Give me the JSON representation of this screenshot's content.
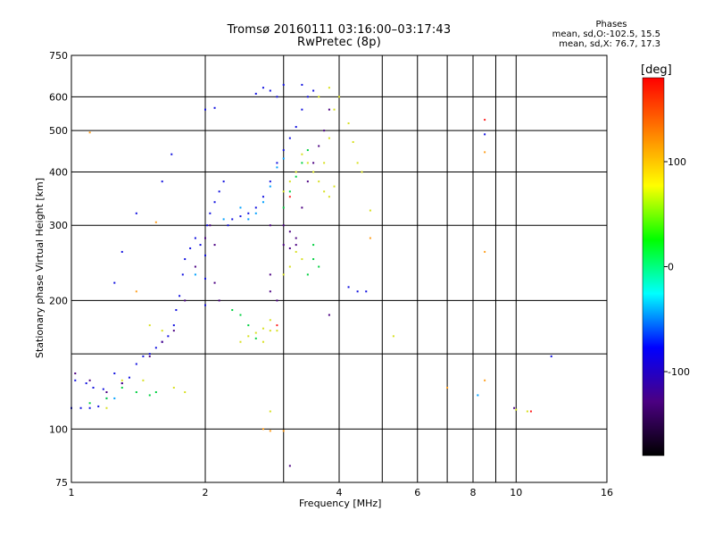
{
  "header": {
    "title_line1": "Tromsø 20160111 03:16:00–03:17:43",
    "title_line2": "RwPretec (8p)"
  },
  "phases": {
    "title": "Phases",
    "o_line": "mean, sd,O:-102.5, 15.5",
    "x_line": "mean, sd,X:  76.7, 17.3"
  },
  "chart_data": {
    "type": "scatter",
    "title": "Tromsø 20160111 03:16:00–03:17:43",
    "subtitle": "RwPretec (8p)",
    "xlabel": "Frequency [MHz]",
    "ylabel": "Stationary phase Virtual Height [km]",
    "x_scale": "log",
    "y_scale": "log",
    "xlim": [
      1,
      16
    ],
    "ylim": [
      75,
      750
    ],
    "x_ticks": [
      1,
      2,
      4,
      6,
      8,
      10,
      16
    ],
    "x_ticks_minor": [
      3,
      5,
      7,
      9
    ],
    "y_ticks": [
      75,
      100,
      200,
      300,
      400,
      500,
      600,
      750
    ],
    "y_ticks_minor": [
      150
    ],
    "grid": true,
    "colorbar": {
      "label": "[deg]",
      "range": [
        -180,
        180
      ],
      "ticks": [
        -100,
        0,
        100
      ],
      "stops": [
        "#000000",
        "#4b0082",
        "#0000ff",
        "#00ffff",
        "#00ff00",
        "#ffff00",
        "#ff7f00",
        "#ff0000"
      ]
    },
    "series": [
      {
        "color": "#1010e0",
        "phase": -100,
        "points": [
          [
            1.0,
            112
          ],
          [
            1.05,
            112
          ],
          [
            1.1,
            112
          ],
          [
            1.15,
            113
          ],
          [
            1.2,
            118
          ],
          [
            1.02,
            130
          ],
          [
            1.08,
            128
          ],
          [
            1.12,
            125
          ],
          [
            1.18,
            124
          ],
          [
            1.25,
            135
          ],
          [
            1.3,
            128
          ],
          [
            1.35,
            132
          ],
          [
            1.4,
            142
          ],
          [
            1.45,
            148
          ],
          [
            1.5,
            150
          ],
          [
            1.55,
            155
          ],
          [
            1.6,
            160
          ],
          [
            1.65,
            165
          ],
          [
            1.7,
            175
          ],
          [
            1.72,
            190
          ],
          [
            1.75,
            205
          ],
          [
            1.78,
            230
          ],
          [
            1.8,
            250
          ],
          [
            1.85,
            265
          ],
          [
            1.9,
            280
          ],
          [
            1.95,
            270
          ],
          [
            2.0,
            255
          ],
          [
            2.0,
            225
          ],
          [
            2.0,
            195
          ],
          [
            2.02,
            300
          ],
          [
            2.05,
            320
          ],
          [
            2.1,
            340
          ],
          [
            2.15,
            360
          ],
          [
            2.2,
            380
          ],
          [
            2.25,
            300
          ],
          [
            2.3,
            310
          ],
          [
            2.4,
            315
          ],
          [
            2.5,
            320
          ],
          [
            2.6,
            330
          ],
          [
            2.7,
            350
          ],
          [
            2.8,
            380
          ],
          [
            2.9,
            420
          ],
          [
            3.0,
            450
          ],
          [
            3.1,
            480
          ],
          [
            3.2,
            510
          ],
          [
            3.3,
            560
          ],
          [
            3.4,
            600
          ],
          [
            2.6,
            610
          ],
          [
            2.7,
            630
          ],
          [
            2.8,
            620
          ],
          [
            2.9,
            600
          ],
          [
            3.0,
            640
          ],
          [
            3.3,
            640
          ],
          [
            3.5,
            620
          ],
          [
            2.0,
            560
          ],
          [
            2.1,
            565
          ],
          [
            1.68,
            440
          ],
          [
            1.6,
            380
          ],
          [
            1.4,
            320
          ],
          [
            1.3,
            260
          ],
          [
            1.25,
            220
          ],
          [
            4.2,
            215
          ],
          [
            4.4,
            210
          ],
          [
            4.6,
            210
          ],
          [
            8.5,
            490
          ],
          [
            12.0,
            148
          ]
        ]
      },
      {
        "color": "#4b0082",
        "phase": -140,
        "points": [
          [
            1.02,
            135
          ],
          [
            1.1,
            130
          ],
          [
            1.2,
            122
          ],
          [
            1.3,
            128
          ],
          [
            1.5,
            148
          ],
          [
            1.6,
            160
          ],
          [
            1.7,
            170
          ],
          [
            1.8,
            200
          ],
          [
            1.9,
            240
          ],
          [
            2.0,
            280
          ],
          [
            2.05,
            300
          ],
          [
            2.1,
            270
          ],
          [
            2.1,
            220
          ],
          [
            2.15,
            200
          ],
          [
            2.8,
            300
          ],
          [
            3.0,
            300
          ],
          [
            3.1,
            290
          ],
          [
            3.2,
            280
          ],
          [
            3.3,
            330
          ],
          [
            3.4,
            380
          ],
          [
            3.5,
            420
          ],
          [
            3.6,
            460
          ],
          [
            3.7,
            500
          ],
          [
            3.8,
            560
          ],
          [
            3.0,
            270
          ],
          [
            3.1,
            265
          ],
          [
            3.2,
            270
          ],
          [
            2.8,
            230
          ],
          [
            2.8,
            210
          ],
          [
            2.9,
            200
          ],
          [
            3.1,
            82
          ],
          [
            3.8,
            185
          ],
          [
            9.9,
            112
          ]
        ]
      },
      {
        "color": "#00a0ff",
        "phase": -40,
        "points": [
          [
            2.5,
            310
          ],
          [
            2.6,
            320
          ],
          [
            2.7,
            340
          ],
          [
            2.8,
            370
          ],
          [
            2.9,
            410
          ],
          [
            3.0,
            430
          ],
          [
            2.4,
            330
          ],
          [
            2.2,
            310
          ],
          [
            1.9,
            230
          ],
          [
            1.25,
            118
          ],
          [
            8.2,
            120
          ]
        ]
      },
      {
        "color": "#00d040",
        "phase": 10,
        "points": [
          [
            1.1,
            115
          ],
          [
            1.2,
            118
          ],
          [
            1.3,
            125
          ],
          [
            1.4,
            122
          ],
          [
            1.5,
            120
          ],
          [
            1.55,
            122
          ],
          [
            2.3,
            190
          ],
          [
            2.4,
            185
          ],
          [
            2.5,
            175
          ],
          [
            3.0,
            330
          ],
          [
            3.1,
            360
          ],
          [
            3.2,
            390
          ],
          [
            3.3,
            420
          ],
          [
            3.4,
            450
          ],
          [
            3.5,
            250
          ],
          [
            3.4,
            230
          ],
          [
            3.6,
            240
          ],
          [
            3.5,
            270
          ],
          [
            2.6,
            163
          ]
        ]
      },
      {
        "color": "#d8e020",
        "phase": 80,
        "points": [
          [
            1.2,
            112
          ],
          [
            1.3,
            130
          ],
          [
            1.45,
            130
          ],
          [
            1.5,
            175
          ],
          [
            1.6,
            170
          ],
          [
            1.7,
            125
          ],
          [
            1.8,
            122
          ],
          [
            2.4,
            160
          ],
          [
            2.5,
            165
          ],
          [
            2.6,
            168
          ],
          [
            2.7,
            172
          ],
          [
            2.8,
            180
          ],
          [
            2.9,
            170
          ],
          [
            3.0,
            360
          ],
          [
            3.1,
            380
          ],
          [
            3.2,
            400
          ],
          [
            3.3,
            440
          ],
          [
            3.4,
            420
          ],
          [
            3.5,
            400
          ],
          [
            3.6,
            380
          ],
          [
            3.7,
            360
          ],
          [
            3.8,
            350
          ],
          [
            3.9,
            370
          ],
          [
            3.7,
            420
          ],
          [
            3.8,
            480
          ],
          [
            3.9,
            560
          ],
          [
            4.0,
            600
          ],
          [
            4.2,
            520
          ],
          [
            4.3,
            470
          ],
          [
            4.4,
            420
          ],
          [
            4.5,
            400
          ],
          [
            3.0,
            230
          ],
          [
            3.1,
            240
          ],
          [
            3.2,
            260
          ],
          [
            3.3,
            250
          ],
          [
            2.7,
            160
          ],
          [
            2.8,
            170
          ],
          [
            3.6,
            600
          ],
          [
            3.8,
            630
          ],
          [
            4.7,
            325
          ],
          [
            2.8,
            110
          ],
          [
            5.3,
            165
          ],
          [
            10.0,
            111
          ],
          [
            10.6,
            110
          ]
        ]
      },
      {
        "color": "#ffa020",
        "phase": 130,
        "points": [
          [
            2.7,
            100
          ],
          [
            2.8,
            99
          ],
          [
            3.0,
            99
          ],
          [
            8.5,
            260
          ],
          [
            8.5,
            445
          ],
          [
            8.5,
            130
          ],
          [
            7.0,
            125
          ],
          [
            4.7,
            280
          ],
          [
            1.4,
            210
          ],
          [
            1.1,
            495
          ],
          [
            1.55,
            305
          ]
        ]
      },
      {
        "color": "#ff2020",
        "phase": 170,
        "points": [
          [
            8.5,
            530
          ],
          [
            10.8,
            110
          ],
          [
            2.9,
            175
          ],
          [
            3.1,
            350
          ]
        ]
      }
    ]
  }
}
